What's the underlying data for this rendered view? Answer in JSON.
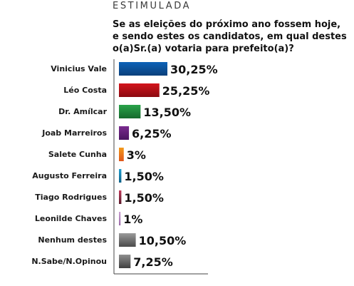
{
  "header": {
    "eyebrow": "ESTIMULADA",
    "question_lines": [
      "Se as eleições do próximo ano fossem hoje,",
      "e sendo estes os candidatos, em qual destes",
      "o(a)Sr.(a) votaria para prefeito(a)?"
    ]
  },
  "chart_data": {
    "type": "bar",
    "orientation": "horizontal",
    "title": "",
    "xlabel": "",
    "ylabel": "",
    "xlim": [
      0,
      30.25
    ],
    "grid": false,
    "categories": [
      "Vinicius Vale",
      "Léo Costa",
      "Dr. Amílcar",
      "Joab Marreiros",
      "Salete Cunha",
      "Augusto Ferreira",
      "Tiago Rodrigues",
      "Leonilde Chaves",
      "Nenhum destes",
      "N.Sabe/N.Opinou"
    ],
    "values": [
      30.25,
      25.25,
      13.5,
      6.25,
      3,
      1.5,
      1.5,
      1,
      10.5,
      7.25
    ],
    "value_labels": [
      "30,25%",
      "25,25%",
      "13,50%",
      "6,25%",
      "3%",
      "1,50%",
      "1,50%",
      "1%",
      "10,50%",
      "7,25%"
    ],
    "colors": [
      [
        "#0d63b8",
        "#0a3f7a"
      ],
      [
        "#d4141c",
        "#8a0a10"
      ],
      [
        "#2aa24a",
        "#15692c"
      ],
      [
        "#7a2b8f",
        "#4a1460"
      ],
      [
        "#f39a1a",
        "#e0551a"
      ],
      [
        "#1f9fd0",
        "#0e5f86"
      ],
      [
        "#c03a5a",
        "#5a1a2a"
      ],
      [
        "#c9a0d0",
        "#9a6aa8"
      ],
      [
        "#9a9a9a",
        "#4a4a4a"
      ],
      [
        "#8f8f8f",
        "#404040"
      ]
    ]
  }
}
